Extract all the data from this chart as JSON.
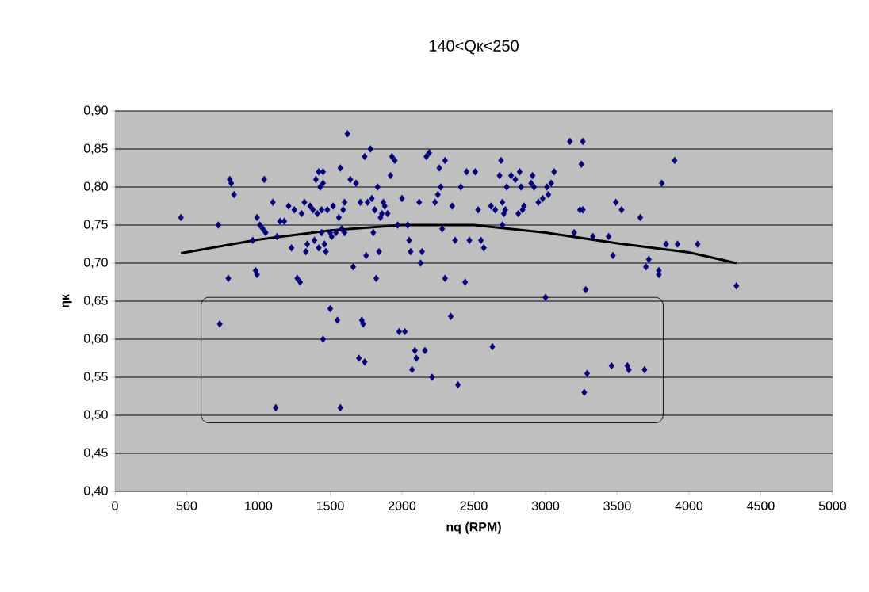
{
  "chart_data": {
    "type": "scatter",
    "title": "140<Qк<250",
    "xlabel": "nq (RPM)",
    "ylabel": "ηк",
    "xlim": [
      0,
      5000
    ],
    "xticks": [
      0,
      500,
      1000,
      1500,
      2000,
      2500,
      3000,
      3500,
      4000,
      4500,
      5000
    ],
    "ylim": [
      0.4,
      0.9
    ],
    "yticks": [
      {
        "value": 0.4,
        "label": "0,40"
      },
      {
        "value": 0.45,
        "label": "0,45"
      },
      {
        "value": 0.5,
        "label": "0,50"
      },
      {
        "value": 0.55,
        "label": "0,55"
      },
      {
        "value": 0.6,
        "label": "0,60"
      },
      {
        "value": 0.65,
        "label": "0,65"
      },
      {
        "value": 0.7,
        "label": "0,70"
      },
      {
        "value": 0.75,
        "label": "0,75"
      },
      {
        "value": 0.8,
        "label": "0,80"
      },
      {
        "value": 0.85,
        "label": "0,85"
      },
      {
        "value": 0.9,
        "label": "0,90"
      }
    ],
    "grid": "y",
    "marker": "diamond",
    "series": [
      {
        "color": "#000080",
        "x": [
          460,
          720,
          790,
          800,
          810,
          830,
          730,
          960,
          980,
          990,
          990,
          1010,
          1030,
          1040,
          1050,
          1100,
          1120,
          1130,
          1150,
          1180,
          1210,
          1230,
          1250,
          1270,
          1290,
          1300,
          1320,
          1330,
          1340,
          1360,
          1380,
          1390,
          1400,
          1410,
          1420,
          1420,
          1430,
          1440,
          1440,
          1450,
          1450,
          1450,
          1460,
          1470,
          1480,
          1500,
          1500,
          1510,
          1520,
          1540,
          1550,
          1560,
          1570,
          1570,
          1580,
          1590,
          1600,
          1600,
          1620,
          1640,
          1660,
          1680,
          1700,
          1710,
          1720,
          1730,
          1740,
          1740,
          1750,
          1760,
          1780,
          1790,
          1800,
          1810,
          1820,
          1830,
          1840,
          1850,
          1860,
          1870,
          1880,
          1900,
          1920,
          1930,
          1950,
          1970,
          1980,
          2000,
          2020,
          2040,
          2050,
          2060,
          2070,
          2090,
          2100,
          2120,
          2130,
          2140,
          2160,
          2170,
          2190,
          2210,
          2230,
          2250,
          2260,
          2270,
          2280,
          2300,
          2300,
          2340,
          2350,
          2370,
          2390,
          2410,
          2440,
          2450,
          2470,
          2510,
          2530,
          2550,
          2570,
          2620,
          2630,
          2650,
          2680,
          2690,
          2700,
          2700,
          2710,
          2720,
          2730,
          2760,
          2790,
          2810,
          2820,
          2830,
          2840,
          2850,
          2900,
          2910,
          2920,
          2950,
          2980,
          3000,
          3010,
          3020,
          3040,
          3060,
          3170,
          3200,
          3240,
          3250,
          3260,
          3260,
          3270,
          3280,
          3290,
          3330,
          3440,
          3460,
          3470,
          3490,
          3530,
          3570,
          3580,
          3660,
          3690,
          3700,
          3720,
          3790,
          3790,
          3810,
          3840,
          3900,
          3920,
          4060,
          4330
        ],
        "values": [
          0.76,
          0.75,
          0.68,
          0.81,
          0.805,
          0.79,
          0.62,
          0.73,
          0.69,
          0.685,
          0.76,
          0.75,
          0.745,
          0.81,
          0.74,
          0.78,
          0.51,
          0.735,
          0.755,
          0.755,
          0.775,
          0.72,
          0.77,
          0.68,
          0.675,
          0.765,
          0.78,
          0.715,
          0.725,
          0.775,
          0.77,
          0.73,
          0.81,
          0.765,
          0.72,
          0.82,
          0.8,
          0.74,
          0.77,
          0.805,
          0.82,
          0.6,
          0.725,
          0.715,
          0.77,
          0.64,
          0.74,
          0.735,
          0.775,
          0.74,
          0.625,
          0.76,
          0.825,
          0.51,
          0.745,
          0.77,
          0.78,
          0.74,
          0.87,
          0.81,
          0.695,
          0.805,
          0.575,
          0.78,
          0.625,
          0.62,
          0.84,
          0.57,
          0.71,
          0.78,
          0.85,
          0.785,
          0.74,
          0.77,
          0.68,
          0.8,
          0.715,
          0.76,
          0.765,
          0.78,
          0.775,
          0.765,
          0.815,
          0.84,
          0.835,
          0.75,
          0.61,
          0.785,
          0.61,
          0.75,
          0.73,
          0.715,
          0.56,
          0.585,
          0.575,
          0.78,
          0.7,
          0.715,
          0.585,
          0.84,
          0.845,
          0.55,
          0.78,
          0.79,
          0.825,
          0.8,
          0.745,
          0.68,
          0.835,
          0.63,
          0.775,
          0.73,
          0.54,
          0.8,
          0.675,
          0.82,
          0.73,
          0.82,
          0.77,
          0.73,
          0.72,
          0.775,
          0.59,
          0.77,
          0.815,
          0.835,
          0.75,
          0.78,
          0.765,
          0.77,
          0.8,
          0.815,
          0.81,
          0.765,
          0.82,
          0.8,
          0.77,
          0.775,
          0.805,
          0.815,
          0.8,
          0.78,
          0.785,
          0.655,
          0.8,
          0.79,
          0.805,
          0.82,
          0.86,
          0.74,
          0.77,
          0.83,
          0.86,
          0.77,
          0.53,
          0.665,
          0.555,
          0.735,
          0.735,
          0.565,
          0.71,
          0.78,
          0.77,
          0.565,
          0.56,
          0.76,
          0.56,
          0.695,
          0.705,
          0.69,
          0.685,
          0.805,
          0.725,
          0.835,
          0.725,
          0.725,
          0.67
        ]
      },
      {
        "type": "line",
        "marker": "none",
        "color": "#000000",
        "x": [
          460,
          1000,
          1500,
          2000,
          2500,
          3000,
          3500,
          4000,
          4330
        ],
        "values": [
          0.713,
          0.731,
          0.743,
          0.75,
          0.75,
          0.74,
          0.726,
          0.714,
          0.7
        ]
      }
    ]
  }
}
